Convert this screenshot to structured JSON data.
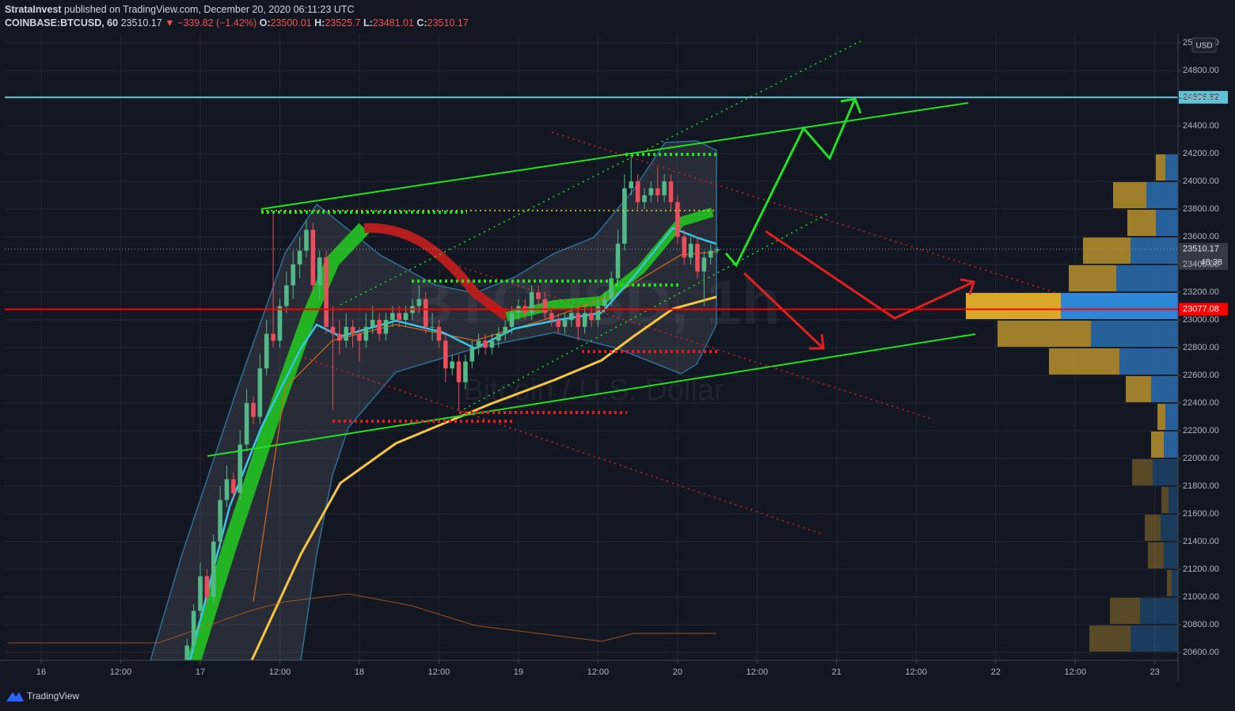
{
  "header": {
    "author": "StrataInvest",
    "published": "published on TradingView.com, December 20, 2020 06:11:23 UTC",
    "symbol": "COINBASE:BTCUSD, 60",
    "change": "▼ −339.82 (−1.42%)",
    "ohlc_labels": [
      "O:",
      "H:",
      "L:",
      "C:"
    ]
  },
  "chart_data": {
    "type": "candlestick",
    "watermark": "BTCUSD, 1h",
    "watermark_subtitle": "Bitcoin / U.S. Dollar",
    "currency": "USD",
    "countdown": "48:38",
    "up_color": "#53b987",
    "down_color": "#eb4d5c",
    "grid": true,
    "x": [
      22,
      23,
      24,
      25,
      26,
      27,
      28,
      29,
      30,
      31,
      32,
      33,
      34,
      35,
      36,
      37,
      38,
      39,
      40,
      41,
      42,
      43,
      44,
      45,
      46,
      47,
      48,
      49,
      50,
      51,
      52,
      53,
      54,
      55,
      56,
      57,
      58,
      59,
      60,
      61,
      62,
      63,
      64,
      65,
      66,
      67,
      68,
      69,
      70,
      71,
      72,
      73,
      74,
      75,
      76,
      77,
      78,
      79,
      80,
      81,
      82,
      83,
      84,
      85,
      86,
      87,
      88,
      89,
      90,
      91,
      92,
      93,
      94,
      95,
      96,
      97,
      98,
      99,
      100,
      101,
      102
    ],
    "open": [
      20500,
      20650,
      20900,
      21150,
      21000,
      21400,
      21700,
      21850,
      21750,
      22100,
      22400,
      22300,
      22650,
      22900,
      22850,
      23100,
      23250,
      23400,
      23500,
      23650,
      23250,
      23450,
      22950,
      22900,
      22850,
      22950,
      22900,
      22850,
      22950,
      23000,
      22900,
      23000,
      23050,
      23000,
      23050,
      23100,
      23150,
      22950,
      22950,
      22850,
      22650,
      22700,
      22550,
      22700,
      22800,
      22850,
      22800,
      22850,
      22900,
      22950,
      23050,
      23100,
      23050,
      23200,
      23150,
      23050,
      23000,
      22950,
      23000,
      23050,
      22950,
      23050,
      23000,
      23100,
      23150,
      23300,
      23550,
      23950,
      24000,
      23850,
      23900,
      23950,
      23900,
      24000,
      23850,
      23600,
      23450,
      23550,
      23350,
      23450,
      23500.01
    ],
    "high": [
      20700,
      20950,
      21250,
      21200,
      21450,
      21800,
      21950,
      21900,
      22200,
      22500,
      22450,
      22750,
      23000,
      23780,
      23150,
      23350,
      23500,
      23600,
      23720,
      23700,
      23500,
      23500,
      23100,
      23000,
      23050,
      23000,
      22950,
      23050,
      23100,
      23050,
      23050,
      23100,
      23100,
      23100,
      23150,
      23250,
      23200,
      23050,
      23000,
      22900,
      22750,
      22750,
      22750,
      22850,
      22900,
      22900,
      22900,
      22950,
      23000,
      23100,
      23150,
      23150,
      23250,
      23250,
      23200,
      23100,
      23050,
      23050,
      23100,
      23100,
      23100,
      23100,
      23150,
      23200,
      23350,
      23650,
      24050,
      24200,
      24050,
      23950,
      24000,
      24100,
      24050,
      24050,
      23900,
      23650,
      23600,
      23600,
      23500,
      23550,
      23525.7
    ],
    "low": [
      20450,
      20600,
      20850,
      20950,
      20950,
      21350,
      21650,
      21700,
      21700,
      22050,
      22250,
      22250,
      22600,
      22800,
      22800,
      23050,
      23150,
      23300,
      23450,
      23200,
      23150,
      22900,
      22350,
      22750,
      22800,
      22800,
      22700,
      22800,
      22900,
      22850,
      22850,
      22950,
      22950,
      22950,
      23000,
      23050,
      22900,
      22850,
      22800,
      22550,
      22600,
      22350,
      22500,
      22650,
      22750,
      22750,
      22750,
      22800,
      22850,
      22900,
      23000,
      23000,
      23000,
      23100,
      23000,
      22950,
      22900,
      22900,
      22950,
      22850,
      22900,
      22950,
      22950,
      23050,
      23100,
      23250,
      23500,
      23900,
      23800,
      23800,
      23850,
      23850,
      23850,
      23800,
      23550,
      23400,
      23400,
      23300,
      23100,
      23400,
      23481.01
    ],
    "close": [
      20650,
      20900,
      21150,
      21000,
      21400,
      21700,
      21850,
      21750,
      22100,
      22400,
      22300,
      22650,
      22900,
      22850,
      23100,
      23250,
      23400,
      23500,
      23650,
      23250,
      23450,
      22950,
      22900,
      22850,
      22950,
      22900,
      22850,
      22950,
      23000,
      22900,
      23000,
      23050,
      23000,
      23050,
      23100,
      23150,
      22950,
      22950,
      22850,
      22650,
      22700,
      22550,
      22700,
      22800,
      22850,
      22800,
      22850,
      22900,
      22950,
      23050,
      23100,
      23050,
      23200,
      23150,
      23050,
      23000,
      22950,
      23000,
      23050,
      22950,
      23050,
      23000,
      23100,
      23150,
      23300,
      23550,
      23950,
      24000,
      23850,
      23900,
      23950,
      23900,
      24000,
      23850,
      23600,
      23450,
      23550,
      23350,
      23450,
      23500.01,
      23510.17
    ],
    "xlim": [
      -5.5,
      171.5
    ],
    "xticks": [
      {
        "value": 0,
        "label": "16"
      },
      {
        "value": 12,
        "label": "12:00"
      },
      {
        "value": 24,
        "label": "17"
      },
      {
        "value": 36,
        "label": "12:00"
      },
      {
        "value": 48,
        "label": "18"
      },
      {
        "value": 60,
        "label": "12:00"
      },
      {
        "value": 72,
        "label": "19"
      },
      {
        "value": 84,
        "label": "12:00"
      },
      {
        "value": 96,
        "label": "20"
      },
      {
        "value": 108,
        "label": "12:00"
      },
      {
        "value": 120,
        "label": "21"
      },
      {
        "value": 132,
        "label": "12:00"
      },
      {
        "value": 144,
        "label": "22"
      },
      {
        "value": 156,
        "label": "12:00"
      },
      {
        "value": 168,
        "label": "23"
      }
    ],
    "ylim": [
      20543,
      25069
    ],
    "yticks": [
      {
        "value": 20600,
        "label": "20600.00"
      },
      {
        "value": 20800,
        "label": "20800.00"
      },
      {
        "value": 21000,
        "label": "21000.00"
      },
      {
        "value": 21200,
        "label": "21200.00"
      },
      {
        "value": 21400,
        "label": "21400.00"
      },
      {
        "value": 21600,
        "label": "21600.00"
      },
      {
        "value": 21800,
        "label": "21800.00"
      },
      {
        "value": 22000,
        "label": "22000.00"
      },
      {
        "value": 22200,
        "label": "22200.00"
      },
      {
        "value": 22400,
        "label": "22400.00"
      },
      {
        "value": 22600,
        "label": "22600.00"
      },
      {
        "value": 22800,
        "label": "22800.00"
      },
      {
        "value": 23000,
        "label": "23000.00"
      },
      {
        "value": 23200,
        "label": "23200.00"
      },
      {
        "value": 23400,
        "label": "23400.00"
      },
      {
        "value": 23600,
        "label": "23600.00"
      },
      {
        "value": 23800,
        "label": "23800.00"
      },
      {
        "value": 24000,
        "label": "24000.00"
      },
      {
        "value": 24200,
        "label": "24200.00"
      },
      {
        "value": 24400,
        "label": "24400.00"
      },
      {
        "value": 24600,
        "label": "24600.00"
      },
      {
        "value": 24800,
        "label": "24800.00"
      },
      {
        "value": 25000,
        "label": "25000.00"
      }
    ],
    "hlines": [
      {
        "value": 24606.82,
        "color": "#5fc3d6"
      },
      {
        "value": 23077.08,
        "color": "#ff0000"
      }
    ]
  },
  "footer": {
    "brand": "TradingView"
  }
}
